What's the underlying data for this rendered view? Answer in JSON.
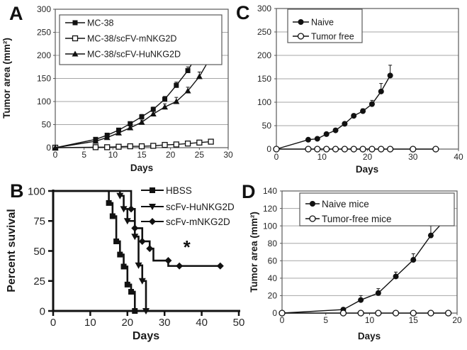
{
  "figure": {
    "background": "#ffffff",
    "colors": {
      "series": "#111111",
      "grid": "#a6a6a6",
      "frame": "#595959",
      "text": "#262626"
    },
    "panel_letters": [
      "A",
      "B",
      "C",
      "D"
    ]
  },
  "chart_data": [
    {
      "panel": "A",
      "type": "line",
      "title": "",
      "xlabel": "Days",
      "ylabel": "Tumor area (mm²)",
      "xlim": [
        0,
        30
      ],
      "ylim": [
        0,
        300
      ],
      "xticks": [
        0,
        5,
        10,
        15,
        20,
        25,
        30
      ],
      "yticks": [
        0,
        50,
        100,
        150,
        200,
        250,
        300
      ],
      "grid": true,
      "frame": "box",
      "legend_border": true,
      "legend_position": "top-left",
      "series": [
        {
          "name": "MC-38",
          "marker": "square-filled",
          "x": [
            0,
            7,
            9,
            11,
            13,
            15,
            17,
            19,
            21,
            23,
            25,
            27
          ],
          "y": [
            0,
            18,
            27,
            38,
            52,
            67,
            83,
            105,
            135,
            167,
            210,
            260
          ],
          "err": [
            0,
            3,
            3,
            4,
            4,
            5,
            5,
            6,
            7,
            8,
            12,
            18
          ]
        },
        {
          "name": "MC-38/scFV-mNKG2D",
          "marker": "square-open",
          "x": [
            0,
            7,
            9,
            11,
            13,
            15,
            17,
            19,
            21,
            23,
            25,
            27
          ],
          "y": [
            0,
            1,
            1,
            2,
            3,
            3,
            4,
            6,
            7,
            9,
            11,
            13
          ],
          "err": [
            0,
            0,
            0,
            0,
            0,
            0,
            0,
            0,
            0,
            0,
            0,
            2
          ]
        },
        {
          "name": "MC-38/scFV-HuNKG2D",
          "marker": "triangle-filled",
          "x": [
            0,
            7,
            9,
            11,
            13,
            15,
            17,
            19,
            21,
            23,
            25,
            27
          ],
          "y": [
            0,
            14,
            22,
            32,
            43,
            55,
            73,
            88,
            100,
            123,
            154,
            197
          ],
          "err": [
            0,
            3,
            3,
            4,
            4,
            5,
            6,
            7,
            9,
            8,
            10,
            15
          ]
        }
      ]
    },
    {
      "panel": "B",
      "type": "step",
      "title": "",
      "xlabel": "Days",
      "ylabel": "Percent suvival",
      "xlim": [
        0,
        50
      ],
      "ylim": [
        0,
        100
      ],
      "xticks": [
        0,
        10,
        20,
        30,
        40,
        50
      ],
      "yticks": [
        0,
        25,
        50,
        75,
        100
      ],
      "grid": false,
      "frame": "axes",
      "legend_border": false,
      "legend_position": "top-right",
      "annotation": {
        "text": "*",
        "x": 36,
        "y": 48
      },
      "series": [
        {
          "name": "HBSS",
          "marker": "square-filled",
          "points": [
            [
              0,
              100
            ],
            [
              15,
              100
            ],
            [
              15,
              90
            ],
            [
              16,
              90
            ],
            [
              16,
              79
            ],
            [
              17,
              79
            ],
            [
              17,
              58
            ],
            [
              18,
              58
            ],
            [
              18,
              47
            ],
            [
              19,
              47
            ],
            [
              19,
              37
            ],
            [
              20,
              37
            ],
            [
              20,
              22
            ],
            [
              21,
              22
            ],
            [
              21,
              16
            ],
            [
              22,
              16
            ],
            [
              22,
              0
            ]
          ],
          "markers": [
            [
              15,
              90
            ],
            [
              16,
              79
            ],
            [
              17,
              58
            ],
            [
              18,
              47
            ],
            [
              19,
              37
            ],
            [
              20,
              22
            ],
            [
              21,
              16
            ],
            [
              22,
              0
            ]
          ]
        },
        {
          "name": "scFv-HuNKG2D",
          "marker": "triangle-down-filled",
          "points": [
            [
              0,
              100
            ],
            [
              18,
              100
            ],
            [
              18,
              96
            ],
            [
              19,
              96
            ],
            [
              19,
              85
            ],
            [
              20,
              85
            ],
            [
              20,
              75
            ],
            [
              22,
              75
            ],
            [
              22,
              62
            ],
            [
              23,
              62
            ],
            [
              23,
              38
            ],
            [
              24,
              38
            ],
            [
              24,
              25
            ],
            [
              25,
              25
            ],
            [
              25,
              0
            ]
          ],
          "markers": [
            [
              18,
              96
            ],
            [
              19,
              85
            ],
            [
              20,
              75
            ],
            [
              22,
              62
            ],
            [
              23,
              38
            ],
            [
              24,
              25
            ],
            [
              25,
              0
            ]
          ]
        },
        {
          "name": "scFv-mNKG2D",
          "marker": "diamond-filled",
          "points": [
            [
              0,
              100
            ],
            [
              21,
              100
            ],
            [
              21,
              85
            ],
            [
              22,
              85
            ],
            [
              22,
              69
            ],
            [
              24,
              69
            ],
            [
              24,
              58
            ],
            [
              26,
              58
            ],
            [
              26,
              52
            ],
            [
              27,
              52
            ],
            [
              27,
              42
            ],
            [
              31,
              42
            ],
            [
              31,
              37.5
            ],
            [
              34,
              37.5
            ],
            [
              45,
              37.5
            ]
          ],
          "markers": [
            [
              21,
              85
            ],
            [
              22,
              69
            ],
            [
              24,
              58
            ],
            [
              26,
              52
            ],
            [
              31,
              42
            ],
            [
              34,
              37.5
            ],
            [
              45,
              37.5
            ]
          ]
        }
      ]
    },
    {
      "panel": "C",
      "type": "line",
      "title": "",
      "xlabel": "Days",
      "ylabel": "",
      "xlim": [
        0,
        40
      ],
      "ylim": [
        0,
        300
      ],
      "xticks": [
        0,
        10,
        20,
        30,
        40
      ],
      "yticks": [
        0,
        50,
        100,
        150,
        200,
        250,
        300
      ],
      "grid": true,
      "frame": "box",
      "legend_border": true,
      "legend_position": "top-left",
      "series": [
        {
          "name": "Naive",
          "marker": "circle-filled",
          "x": [
            0,
            7,
            9,
            11,
            13,
            15,
            17,
            19,
            21,
            23,
            25
          ],
          "y": [
            0,
            20,
            22,
            32,
            40,
            54,
            71,
            81,
            96,
            123,
            157
          ],
          "err": [
            0,
            0,
            0,
            0,
            0,
            0,
            4,
            5,
            8,
            17,
            22
          ]
        },
        {
          "name": "Tumor free",
          "marker": "circle-open",
          "x": [
            0,
            7,
            9,
            11,
            13,
            15,
            17,
            19,
            21,
            23,
            25,
            30,
            35
          ],
          "y": [
            0,
            0,
            0,
            0,
            0,
            0,
            0,
            0,
            0,
            0,
            0,
            0,
            0
          ],
          "err": [
            0,
            0,
            0,
            0,
            0,
            0,
            0,
            0,
            0,
            0,
            0,
            0,
            0
          ]
        }
      ]
    },
    {
      "panel": "D",
      "type": "line",
      "title": "",
      "xlabel": "Days",
      "ylabel": "Tumor area (mm²)",
      "xlim": [
        0,
        20
      ],
      "ylim": [
        0,
        140
      ],
      "xticks": [
        0,
        5,
        10,
        15,
        20
      ],
      "yticks": [
        0,
        20,
        40,
        60,
        80,
        100,
        120,
        140
      ],
      "grid": true,
      "frame": "box",
      "legend_border": true,
      "legend_position": "top-left",
      "series": [
        {
          "name": "Naive mice",
          "marker": "circle-filled",
          "x": [
            0,
            7,
            9,
            11,
            13,
            15,
            17,
            19
          ],
          "y": [
            0,
            4,
            15,
            23,
            42,
            61,
            89,
            111
          ],
          "err": [
            0,
            0,
            5,
            5,
            5,
            7,
            11,
            11
          ]
        },
        {
          "name": "Tumor-free mice",
          "marker": "circle-open",
          "x": [
            0,
            7,
            9,
            11,
            13,
            15,
            17,
            19
          ],
          "y": [
            0,
            0,
            0,
            0,
            0,
            0,
            0,
            0
          ],
          "err": [
            0,
            0,
            0,
            0,
            0,
            0,
            0,
            0
          ]
        }
      ]
    }
  ]
}
